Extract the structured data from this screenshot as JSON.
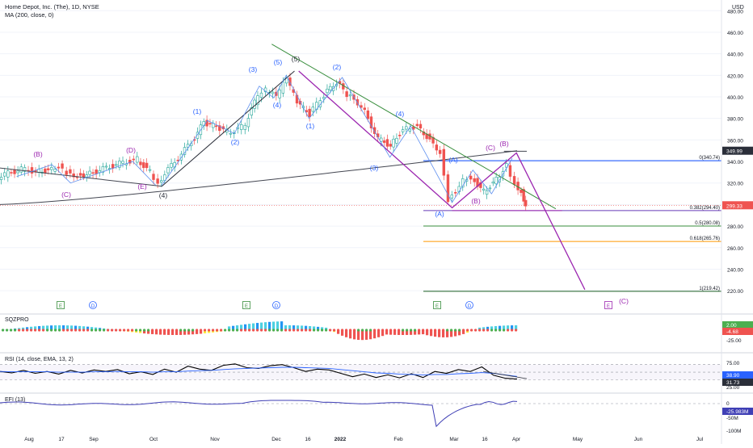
{
  "header": {
    "title": "Home Depot, Inc. (The), 1D, NYSE",
    "indicator": "MA (200, close, 0)",
    "currency": "USD"
  },
  "colors": {
    "up": "#26a69a",
    "down": "#ef5350",
    "ma": "#434651",
    "wave_blue": "#2962ff",
    "wave_purple": "#9c27b0",
    "fib_blue": "#2962ff",
    "fib_purple": "#673ab7",
    "fib_green": "#388e3c",
    "fib_orange": "#ff9800",
    "fib_green2": "#1b5e20",
    "rsi": "#000000",
    "rsi_ema": "#2962ff",
    "efi": "#3f3fb5"
  },
  "chart_data": [
    {
      "type": "candlestick",
      "title": "Home Depot, Inc. (The), 1D, NYSE",
      "x_ticks": [
        "Aug",
        "17",
        "Sep",
        "Oct",
        "Nov",
        "Dec",
        "16",
        "2022",
        "Feb",
        "Mar",
        "16",
        "Apr",
        "May",
        "Jun",
        "Jul"
      ],
      "ylim": [
        200,
        480
      ],
      "y_ticks": [
        480,
        460,
        440,
        420,
        400,
        380,
        360,
        340,
        320,
        300,
        280,
        260,
        240,
        220
      ],
      "y_tick_labels": [
        "480.00",
        "460.00",
        "440.00",
        "420.00",
        "400.00",
        "380.00",
        "360.00",
        "340.00",
        "320.00",
        "300.00",
        "280.00",
        "260.00",
        "240.00",
        "220.00"
      ],
      "close_series": [
        {
          "x": "Jul 12",
          "y": 322
        },
        {
          "x": "Jul 20",
          "y": 328
        },
        {
          "x": "Jul 28",
          "y": 333
        },
        {
          "x": "Aug 5",
          "y": 331
        },
        {
          "x": "Aug 11",
          "y": 332
        },
        {
          "x": "Aug 16",
          "y": 336
        },
        {
          "x": "Aug 20",
          "y": 330
        },
        {
          "x": "Aug 25",
          "y": 327
        },
        {
          "x": "Sep 1",
          "y": 329
        },
        {
          "x": "Sep 9",
          "y": 334
        },
        {
          "x": "Sep 17",
          "y": 339
        },
        {
          "x": "Sep 24",
          "y": 342
        },
        {
          "x": "Sep 30",
          "y": 330
        },
        {
          "x": "Oct 4",
          "y": 321
        },
        {
          "x": "Oct 12",
          "y": 340
        },
        {
          "x": "Oct 20",
          "y": 358
        },
        {
          "x": "Oct 26",
          "y": 376
        },
        {
          "x": "Nov 2",
          "y": 372
        },
        {
          "x": "Nov 9",
          "y": 366
        },
        {
          "x": "Nov 16",
          "y": 374
        },
        {
          "x": "Nov 22",
          "y": 402
        },
        {
          "x": "Nov 26",
          "y": 406
        },
        {
          "x": "Dec 1",
          "y": 400
        },
        {
          "x": "Dec 6",
          "y": 417
        },
        {
          "x": "Dec 11",
          "y": 394
        },
        {
          "x": "Dec 17",
          "y": 384
        },
        {
          "x": "Dec 24",
          "y": 402
        },
        {
          "x": "Dec 30",
          "y": 414
        },
        {
          "x": "Jan 5",
          "y": 402
        },
        {
          "x": "Jan 12",
          "y": 392
        },
        {
          "x": "Jan 20",
          "y": 361
        },
        {
          "x": "Jan 26",
          "y": 355
        },
        {
          "x": "Feb 2",
          "y": 370
        },
        {
          "x": "Feb 9",
          "y": 373
        },
        {
          "x": "Feb 15",
          "y": 360
        },
        {
          "x": "Feb 20",
          "y": 349
        },
        {
          "x": "Feb 24",
          "y": 305
        },
        {
          "x": "Mar 1",
          "y": 322
        },
        {
          "x": "Mar 5",
          "y": 326
        },
        {
          "x": "Mar 11",
          "y": 312
        },
        {
          "x": "Mar 17",
          "y": 323
        },
        {
          "x": "Mar 22",
          "y": 337
        },
        {
          "x": "Mar 26",
          "y": 320
        },
        {
          "x": "Mar 29",
          "y": 312
        },
        {
          "x": "Mar 31",
          "y": 299
        }
      ],
      "moving_average": {
        "name": "MA (200, close, 0)",
        "start": 300,
        "end": 349.99
      },
      "price_labels": [
        {
          "value": 349.99,
          "text": "349.99"
        },
        {
          "value": 299.33,
          "text": "299.33"
        }
      ],
      "fib_levels": [
        {
          "value": 340.74,
          "label": "0(340.74)"
        },
        {
          "value": 294.4,
          "label": "0.382(294.40)"
        },
        {
          "value": 280.08,
          "label": "0.5(280.08)"
        },
        {
          "value": 265.76,
          "label": "0.618(265.76)"
        },
        {
          "value": 219.42,
          "label": "1(219.42)"
        }
      ],
      "wave_labels": [
        {
          "text": "(B)"
        },
        {
          "text": "(C)"
        },
        {
          "text": "(D)"
        },
        {
          "text": "(E)"
        },
        {
          "text": "(4)"
        },
        {
          "text": "(1)"
        },
        {
          "text": "(2)"
        },
        {
          "text": "(3)"
        },
        {
          "text": "(4)"
        },
        {
          "text": "(5)"
        },
        {
          "text": "(5)"
        },
        {
          "text": "(1)"
        },
        {
          "text": "(2)"
        },
        {
          "text": "(3)"
        },
        {
          "text": "(4)"
        },
        {
          "text": "(A)"
        },
        {
          "text": "(B)"
        },
        {
          "text": "(C)"
        },
        {
          "text": "(A)"
        },
        {
          "text": "(B)"
        },
        {
          "text": "(C)"
        }
      ],
      "event_markers": [
        "E",
        "D",
        "E",
        "D",
        "E",
        "D",
        "E"
      ]
    },
    {
      "type": "bar",
      "title": "SQZPRO",
      "y_tick_labels": [
        "2.00",
        "-4.68",
        "-25.00"
      ]
    },
    {
      "type": "line",
      "title": "RSI (14, close, EMA, 13, 2)",
      "ylim": [
        20,
        80
      ],
      "y_tick_labels": [
        "75.00",
        "38.90",
        "31.73",
        "25.00"
      ],
      "series": [
        {
          "name": "RSI",
          "values": [
            52,
            48,
            55,
            47,
            52,
            45,
            55,
            48,
            56,
            52,
            57,
            46,
            51,
            44,
            58,
            50,
            66,
            58,
            55,
            68,
            72,
            62,
            60,
            67,
            70,
            62,
            52,
            58,
            56,
            47,
            38,
            45,
            36,
            43,
            35,
            46,
            36,
            52,
            47,
            57,
            52,
            64,
            42,
            34,
            32
          ]
        },
        {
          "name": "EMA",
          "values": [
            52,
            51,
            51,
            51,
            51,
            50,
            50,
            50,
            51,
            51,
            52,
            51,
            51,
            50,
            51,
            51,
            53,
            54,
            55,
            57,
            59,
            60,
            61,
            62,
            63,
            63,
            62,
            61,
            60,
            57,
            54,
            51,
            48,
            47,
            45,
            44,
            43,
            44,
            44,
            46,
            47,
            49,
            47,
            43,
            38.9
          ]
        }
      ]
    },
    {
      "type": "line",
      "title": "EFI (13)",
      "y_tick_labels": [
        "0",
        "-25.983M",
        "-50M",
        "-100M"
      ]
    }
  ]
}
